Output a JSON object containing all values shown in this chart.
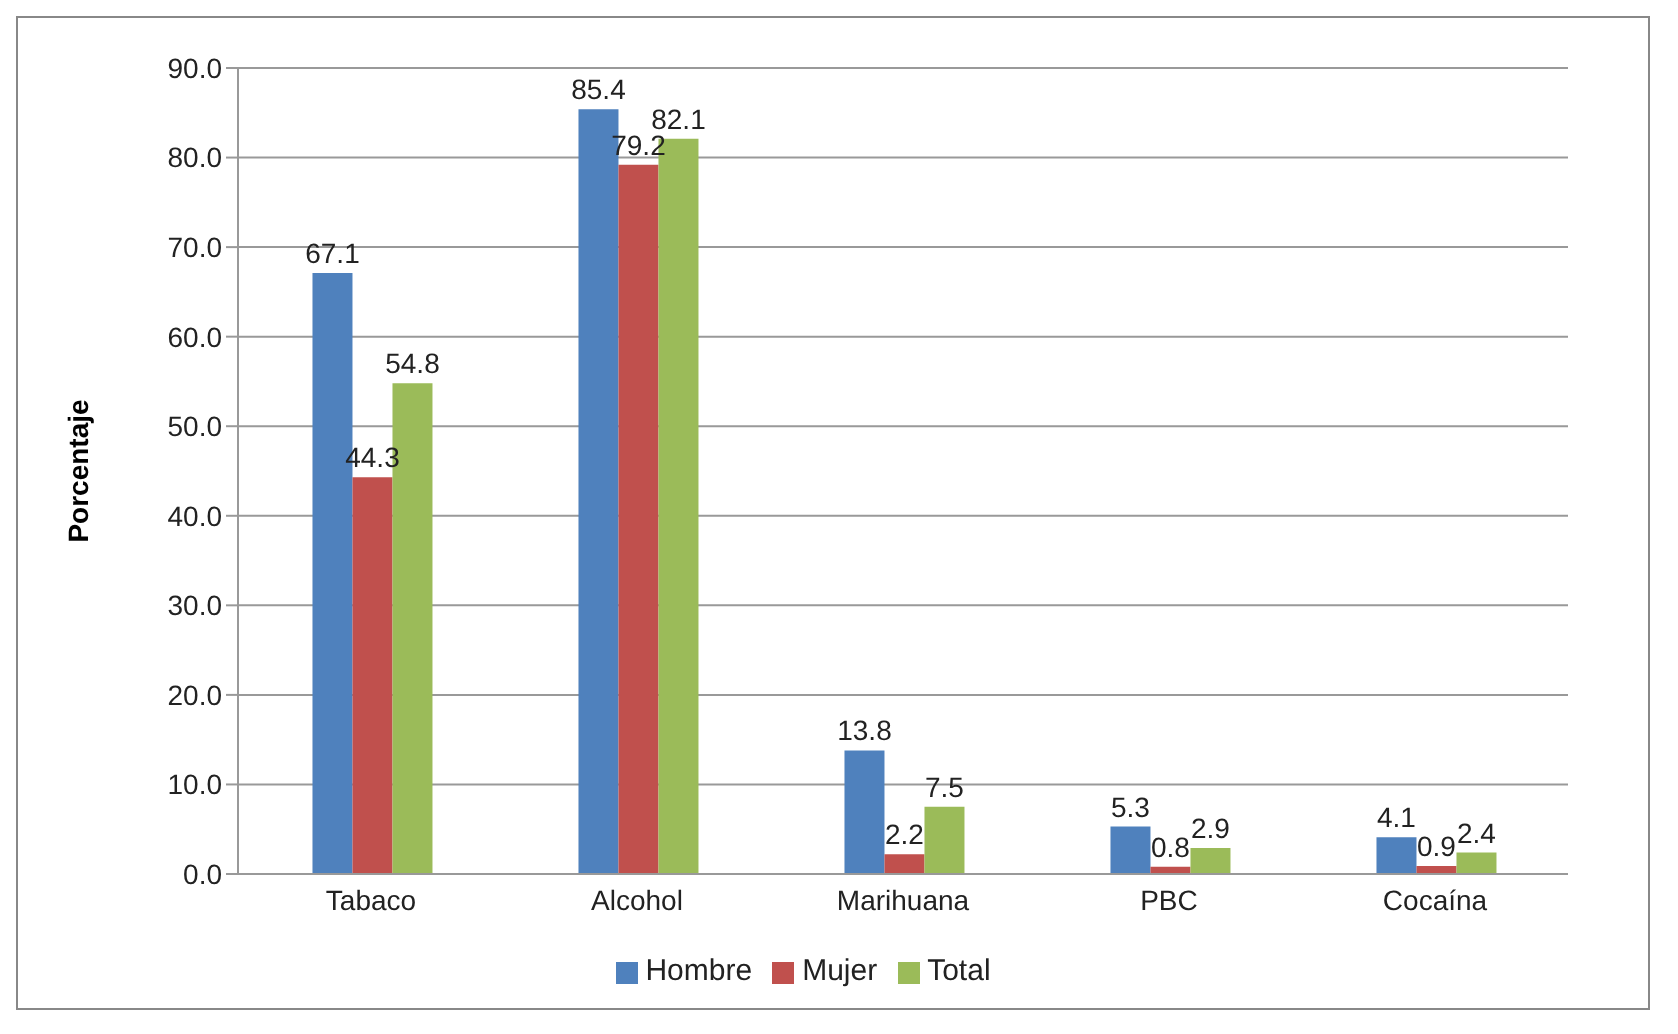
{
  "chart_data": {
    "type": "bar",
    "ylabel": "Porcentaje",
    "categories": [
      "Tabaco",
      "Alcohol",
      "Marihuana",
      "PBC",
      "Cocaína"
    ],
    "series": [
      {
        "name": "Hombre",
        "color": "#4f81bd",
        "values": [
          67.1,
          85.4,
          13.8,
          5.3,
          4.1
        ]
      },
      {
        "name": "Mujer",
        "color": "#c0504d",
        "values": [
          44.3,
          79.2,
          2.2,
          0.8,
          0.9
        ]
      },
      {
        "name": "Total",
        "color": "#9bbb59",
        "values": [
          54.8,
          82.1,
          7.5,
          2.9,
          2.4
        ]
      }
    ],
    "ylim": [
      0,
      90
    ],
    "yticks": [
      {
        "value": 0,
        "label": "0.0"
      },
      {
        "value": 10,
        "label": "10.0"
      },
      {
        "value": 20,
        "label": "20.0"
      },
      {
        "value": 30,
        "label": "30.0"
      },
      {
        "value": 40,
        "label": "40.0"
      },
      {
        "value": 50,
        "label": "50.0"
      },
      {
        "value": 60,
        "label": "60.0"
      },
      {
        "value": 70,
        "label": "70.0"
      },
      {
        "value": 80,
        "label": "80.0"
      },
      {
        "value": 90,
        "label": "90.0"
      }
    ],
    "grid": "y",
    "legend": "bottom",
    "data_labels": true
  }
}
